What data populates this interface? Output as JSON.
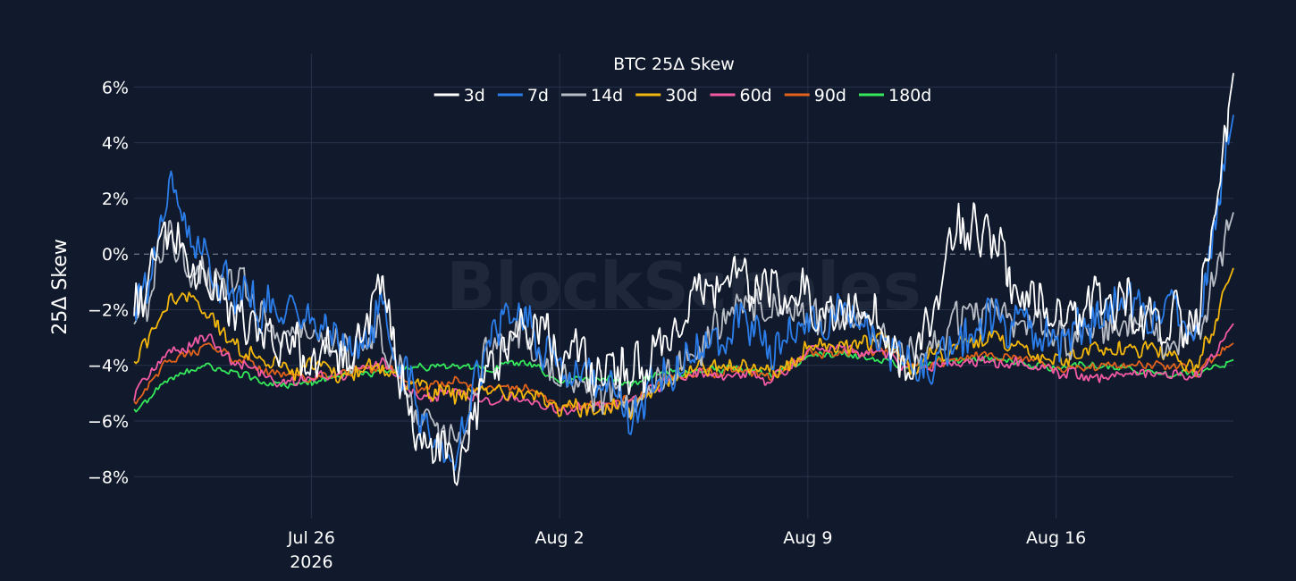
{
  "chart_data": {
    "type": "line",
    "title": "BTC 25Δ Skew",
    "ylabel": "25Δ Skew",
    "watermark": "BlockScholes",
    "x_range": [
      "2026-07-21",
      "2026-08-21"
    ],
    "ylim": [
      -9.5,
      7.2
    ],
    "y_ticks": [
      6,
      4,
      2,
      0,
      -2,
      -4,
      -6,
      -8
    ],
    "y_tick_labels": [
      "6%",
      "4%",
      "2%",
      "0%",
      "−2%",
      "−4%",
      "−6%",
      "−8%"
    ],
    "x_ticks": [
      {
        "date": "2026-07-26",
        "label": "Jul 26",
        "sublabel": "2026"
      },
      {
        "date": "2026-08-02",
        "label": "Aug 2",
        "sublabel": ""
      },
      {
        "date": "2026-08-09",
        "label": "Aug 9",
        "sublabel": ""
      },
      {
        "date": "2026-08-16",
        "label": "Aug 16",
        "sublabel": ""
      }
    ],
    "zero_line": true,
    "grid": true,
    "legend_position": "top-center",
    "series": [
      {
        "name": "3d",
        "color": "#ffffff",
        "points": [
          [
            "2026-07-21",
            -2.0
          ],
          [
            "2026-07-22",
            1.0
          ],
          [
            "2026-07-23",
            -1.0
          ],
          [
            "2026-07-24",
            -2.5
          ],
          [
            "2026-07-25",
            -3.0
          ],
          [
            "2026-07-26",
            -3.2
          ],
          [
            "2026-07-27",
            -3.5
          ],
          [
            "2026-07-28",
            -1.5
          ],
          [
            "2026-07-29",
            -6.5
          ],
          [
            "2026-07-30",
            -8.0
          ],
          [
            "2026-07-31",
            -4.0
          ],
          [
            "2026-08-01",
            -2.5
          ],
          [
            "2026-08-02",
            -3.5
          ],
          [
            "2026-08-03",
            -4.0
          ],
          [
            "2026-08-04",
            -4.5
          ],
          [
            "2026-08-05",
            -3.5
          ],
          [
            "2026-08-06",
            -1.5
          ],
          [
            "2026-08-07",
            -0.5
          ],
          [
            "2026-08-08",
            -1.5
          ],
          [
            "2026-08-09",
            -1.5
          ],
          [
            "2026-08-10",
            -2.0
          ],
          [
            "2026-08-11",
            -2.0
          ],
          [
            "2026-08-12",
            -4.5
          ],
          [
            "2026-08-13",
            0.5
          ],
          [
            "2026-08-14",
            1.0
          ],
          [
            "2026-08-15",
            -1.5
          ],
          [
            "2026-08-16",
            -2.0
          ],
          [
            "2026-08-17",
            -2.0
          ],
          [
            "2026-08-18",
            -2.0
          ],
          [
            "2026-08-19",
            -2.5
          ],
          [
            "2026-08-20",
            -2.5
          ],
          [
            "2026-08-21",
            6.5
          ]
        ]
      },
      {
        "name": "7d",
        "color": "#2b7de9",
        "points": [
          [
            "2026-07-21",
            -2.5
          ],
          [
            "2026-07-22",
            2.0
          ],
          [
            "2026-07-23",
            -0.5
          ],
          [
            "2026-07-24",
            -1.5
          ],
          [
            "2026-07-25",
            -2.0
          ],
          [
            "2026-07-26",
            -2.5
          ],
          [
            "2026-07-27",
            -3.5
          ],
          [
            "2026-07-28",
            -2.0
          ],
          [
            "2026-07-29",
            -5.5
          ],
          [
            "2026-07-30",
            -7.5
          ],
          [
            "2026-07-31",
            -3.0
          ],
          [
            "2026-08-01",
            -2.0
          ],
          [
            "2026-08-02",
            -4.5
          ],
          [
            "2026-08-03",
            -4.5
          ],
          [
            "2026-08-04",
            -5.5
          ],
          [
            "2026-08-05",
            -4.5
          ],
          [
            "2026-08-06",
            -3.5
          ],
          [
            "2026-08-07",
            -2.5
          ],
          [
            "2026-08-08",
            -3.0
          ],
          [
            "2026-08-09",
            -2.5
          ],
          [
            "2026-08-10",
            -2.0
          ],
          [
            "2026-08-11",
            -2.5
          ],
          [
            "2026-08-12",
            -4.5
          ],
          [
            "2026-08-13",
            -3.5
          ],
          [
            "2026-08-14",
            -2.5
          ],
          [
            "2026-08-15",
            -2.5
          ],
          [
            "2026-08-16",
            -3.0
          ],
          [
            "2026-08-17",
            -2.5
          ],
          [
            "2026-08-18",
            -1.5
          ],
          [
            "2026-08-19",
            -2.0
          ],
          [
            "2026-08-20",
            -2.5
          ],
          [
            "2026-08-21",
            5.0
          ]
        ]
      },
      {
        "name": "14d",
        "color": "#b8bcc4",
        "points": [
          [
            "2026-07-21",
            -2.8
          ],
          [
            "2026-07-22",
            0.5
          ],
          [
            "2026-07-23",
            -1.0
          ],
          [
            "2026-07-24",
            -1.0
          ],
          [
            "2026-07-25",
            -2.5
          ],
          [
            "2026-07-26",
            -2.8
          ],
          [
            "2026-07-27",
            -3.5
          ],
          [
            "2026-07-28",
            -3.0
          ],
          [
            "2026-07-29",
            -5.5
          ],
          [
            "2026-07-30",
            -7.0
          ],
          [
            "2026-07-31",
            -3.5
          ],
          [
            "2026-08-01",
            -3.0
          ],
          [
            "2026-08-02",
            -4.5
          ],
          [
            "2026-08-03",
            -5.0
          ],
          [
            "2026-08-04",
            -5.5
          ],
          [
            "2026-08-05",
            -4.5
          ],
          [
            "2026-08-06",
            -3.5
          ],
          [
            "2026-08-07",
            -1.5
          ],
          [
            "2026-08-08",
            -1.8
          ],
          [
            "2026-08-09",
            -2.0
          ],
          [
            "2026-08-10",
            -2.5
          ],
          [
            "2026-08-11",
            -3.0
          ],
          [
            "2026-08-12",
            -4.0
          ],
          [
            "2026-08-13",
            -2.5
          ],
          [
            "2026-08-14",
            -2.0
          ],
          [
            "2026-08-15",
            -2.5
          ],
          [
            "2026-08-16",
            -3.0
          ],
          [
            "2026-08-17",
            -3.0
          ],
          [
            "2026-08-18",
            -2.5
          ],
          [
            "2026-08-19",
            -2.8
          ],
          [
            "2026-08-20",
            -3.0
          ],
          [
            "2026-08-21",
            1.5
          ]
        ]
      },
      {
        "name": "30d",
        "color": "#f3b60c",
        "points": [
          [
            "2026-07-21",
            -4.0
          ],
          [
            "2026-07-22",
            -1.5
          ],
          [
            "2026-07-23",
            -2.0
          ],
          [
            "2026-07-24",
            -3.5
          ],
          [
            "2026-07-25",
            -4.0
          ],
          [
            "2026-07-26",
            -4.2
          ],
          [
            "2026-07-27",
            -4.3
          ],
          [
            "2026-07-28",
            -4.0
          ],
          [
            "2026-07-29",
            -4.8
          ],
          [
            "2026-07-30",
            -5.0
          ],
          [
            "2026-07-31",
            -4.8
          ],
          [
            "2026-08-01",
            -5.0
          ],
          [
            "2026-08-02",
            -5.5
          ],
          [
            "2026-08-03",
            -5.5
          ],
          [
            "2026-08-04",
            -5.5
          ],
          [
            "2026-08-05",
            -4.5
          ],
          [
            "2026-08-06",
            -4.2
          ],
          [
            "2026-08-07",
            -4.0
          ],
          [
            "2026-08-08",
            -4.2
          ],
          [
            "2026-08-09",
            -3.5
          ],
          [
            "2026-08-10",
            -3.2
          ],
          [
            "2026-08-11",
            -3.0
          ],
          [
            "2026-08-12",
            -4.0
          ],
          [
            "2026-08-13",
            -3.5
          ],
          [
            "2026-08-14",
            -3.0
          ],
          [
            "2026-08-15",
            -3.5
          ],
          [
            "2026-08-16",
            -3.8
          ],
          [
            "2026-08-17",
            -3.5
          ],
          [
            "2026-08-18",
            -3.2
          ],
          [
            "2026-08-19",
            -3.5
          ],
          [
            "2026-08-20",
            -4.0
          ],
          [
            "2026-08-21",
            -0.5
          ]
        ]
      },
      {
        "name": "60d",
        "color": "#f35aa5",
        "points": [
          [
            "2026-07-21",
            -5.0
          ],
          [
            "2026-07-22",
            -3.5
          ],
          [
            "2026-07-23",
            -3.0
          ],
          [
            "2026-07-24",
            -4.0
          ],
          [
            "2026-07-25",
            -4.5
          ],
          [
            "2026-07-26",
            -4.5
          ],
          [
            "2026-07-27",
            -4.3
          ],
          [
            "2026-07-28",
            -3.8
          ],
          [
            "2026-07-29",
            -5.2
          ],
          [
            "2026-07-30",
            -5.0
          ],
          [
            "2026-07-31",
            -5.2
          ],
          [
            "2026-08-01",
            -5.2
          ],
          [
            "2026-08-02",
            -5.6
          ],
          [
            "2026-08-03",
            -5.5
          ],
          [
            "2026-08-04",
            -5.4
          ],
          [
            "2026-08-05",
            -4.5
          ],
          [
            "2026-08-06",
            -4.3
          ],
          [
            "2026-08-07",
            -4.3
          ],
          [
            "2026-08-08",
            -4.5
          ],
          [
            "2026-08-09",
            -3.5
          ],
          [
            "2026-08-10",
            -3.5
          ],
          [
            "2026-08-11",
            -3.5
          ],
          [
            "2026-08-12",
            -4.2
          ],
          [
            "2026-08-13",
            -4.0
          ],
          [
            "2026-08-14",
            -3.8
          ],
          [
            "2026-08-15",
            -4.0
          ],
          [
            "2026-08-16",
            -4.2
          ],
          [
            "2026-08-17",
            -4.5
          ],
          [
            "2026-08-18",
            -4.3
          ],
          [
            "2026-08-19",
            -4.2
          ],
          [
            "2026-08-20",
            -4.3
          ],
          [
            "2026-08-21",
            -2.5
          ]
        ]
      },
      {
        "name": "90d",
        "color": "#e2621b",
        "points": [
          [
            "2026-07-21",
            -5.3
          ],
          [
            "2026-07-22",
            -3.8
          ],
          [
            "2026-07-23",
            -3.3
          ],
          [
            "2026-07-24",
            -3.8
          ],
          [
            "2026-07-25",
            -4.3
          ],
          [
            "2026-07-26",
            -4.4
          ],
          [
            "2026-07-27",
            -4.3
          ],
          [
            "2026-07-28",
            -4.0
          ],
          [
            "2026-07-29",
            -4.8
          ],
          [
            "2026-07-30",
            -4.6
          ],
          [
            "2026-07-31",
            -4.8
          ],
          [
            "2026-08-01",
            -4.8
          ],
          [
            "2026-08-02",
            -5.5
          ],
          [
            "2026-08-03",
            -5.4
          ],
          [
            "2026-08-04",
            -5.2
          ],
          [
            "2026-08-05",
            -4.5
          ],
          [
            "2026-08-06",
            -4.3
          ],
          [
            "2026-08-07",
            -4.2
          ],
          [
            "2026-08-08",
            -4.4
          ],
          [
            "2026-08-09",
            -3.6
          ],
          [
            "2026-08-10",
            -3.5
          ],
          [
            "2026-08-11",
            -3.5
          ],
          [
            "2026-08-12",
            -4.0
          ],
          [
            "2026-08-13",
            -3.8
          ],
          [
            "2026-08-14",
            -3.6
          ],
          [
            "2026-08-15",
            -3.8
          ],
          [
            "2026-08-16",
            -4.0
          ],
          [
            "2026-08-17",
            -4.0
          ],
          [
            "2026-08-18",
            -4.0
          ],
          [
            "2026-08-19",
            -4.0
          ],
          [
            "2026-08-20",
            -4.2
          ],
          [
            "2026-08-21",
            -3.2
          ]
        ]
      },
      {
        "name": "180d",
        "color": "#35e85a",
        "points": [
          [
            "2026-07-21",
            -5.7
          ],
          [
            "2026-07-22",
            -4.5
          ],
          [
            "2026-07-23",
            -4.0
          ],
          [
            "2026-07-24",
            -4.3
          ],
          [
            "2026-07-25",
            -4.7
          ],
          [
            "2026-07-26",
            -4.6
          ],
          [
            "2026-07-27",
            -4.3
          ],
          [
            "2026-07-28",
            -4.2
          ],
          [
            "2026-07-29",
            -4.1
          ],
          [
            "2026-07-30",
            -4.0
          ],
          [
            "2026-07-31",
            -4.1
          ],
          [
            "2026-08-01",
            -3.8
          ],
          [
            "2026-08-02",
            -4.5
          ],
          [
            "2026-08-03",
            -4.5
          ],
          [
            "2026-08-04",
            -4.6
          ],
          [
            "2026-08-05",
            -4.3
          ],
          [
            "2026-08-06",
            -4.2
          ],
          [
            "2026-08-07",
            -4.1
          ],
          [
            "2026-08-08",
            -4.3
          ],
          [
            "2026-08-09",
            -3.7
          ],
          [
            "2026-08-10",
            -3.6
          ],
          [
            "2026-08-11",
            -3.8
          ],
          [
            "2026-08-12",
            -4.0
          ],
          [
            "2026-08-13",
            -3.8
          ],
          [
            "2026-08-14",
            -3.7
          ],
          [
            "2026-08-15",
            -3.9
          ],
          [
            "2026-08-16",
            -4.1
          ],
          [
            "2026-08-17",
            -4.0
          ],
          [
            "2026-08-18",
            -4.1
          ],
          [
            "2026-08-19",
            -4.3
          ],
          [
            "2026-08-20",
            -4.3
          ],
          [
            "2026-08-21",
            -3.8
          ]
        ]
      }
    ]
  }
}
